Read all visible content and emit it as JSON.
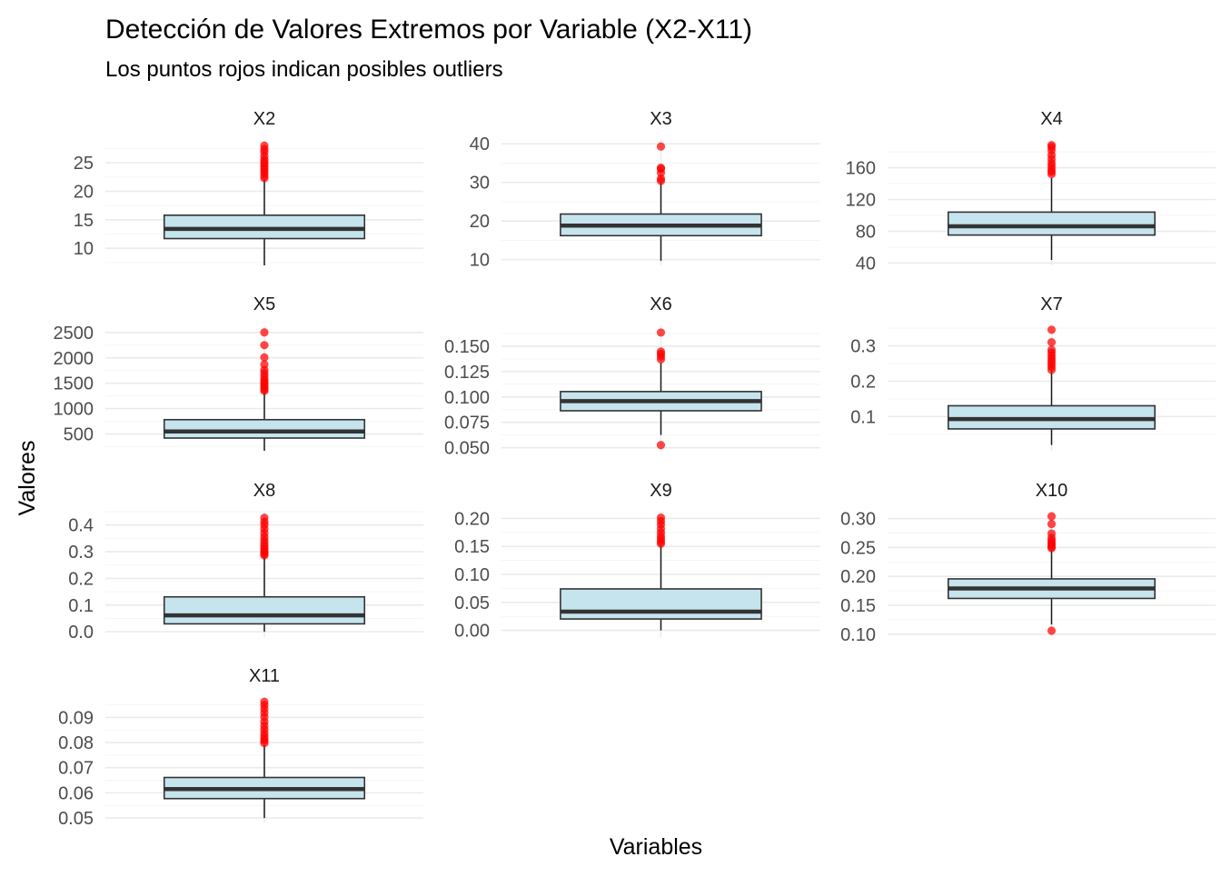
{
  "chart_data": {
    "type": "box",
    "title": "Detección de Valores Extremos por Variable (X2-X11)",
    "subtitle": "Los puntos rojos indican posibles outliers",
    "xlabel": "Variables",
    "ylabel": "Valores",
    "grid": true,
    "legend": "none",
    "colors": {
      "box_fill": "#c6e4ed",
      "box_line": "#333333",
      "whisker": "#1a1a1a",
      "outlier": "#ff0000",
      "grid_major": "#ebebeb",
      "grid_minor": "#f5f5f5"
    },
    "panels": [
      {
        "name": "X2",
        "ylim": [
          7,
          29
        ],
        "ticks": [
          10,
          15,
          20,
          25
        ],
        "tick_labels": [
          "10",
          "15",
          "20",
          "25"
        ],
        "stats": {
          "low": 7.0,
          "q1": 11.7,
          "median": 13.4,
          "q3": 15.8,
          "high": 22.0
        },
        "outliers": [
          22.3,
          22.7,
          23.2,
          23.6,
          24.0,
          24.4,
          24.8,
          25.2,
          25.6,
          26.2,
          26.9,
          27.4,
          28.0
        ]
      },
      {
        "name": "X3",
        "ylim": [
          8.5,
          41
        ],
        "ticks": [
          10,
          20,
          30,
          40
        ],
        "tick_labels": [
          "10",
          "20",
          "30",
          "40"
        ],
        "stats": {
          "low": 9.7,
          "q1": 16.2,
          "median": 18.8,
          "q3": 21.8,
          "high": 29.9
        },
        "outliers": [
          30.4,
          31.0,
          32.5,
          33.5,
          33.8,
          39.3
        ]
      },
      {
        "name": "X4",
        "ylim": [
          37,
          195
        ],
        "ticks": [
          40,
          80,
          120,
          160
        ],
        "tick_labels": [
          "40",
          "80",
          "120",
          "160"
        ],
        "stats": {
          "low": 43.8,
          "q1": 75.2,
          "median": 86.2,
          "q3": 104.1,
          "high": 147.0
        },
        "outliers": [
          152.0,
          155.0,
          158.0,
          162.0,
          166.0,
          171.0,
          176.0,
          182.0,
          186.0,
          188.5
        ]
      },
      {
        "name": "X5",
        "ylim": [
          170,
          2640
        ],
        "ticks": [
          500,
          1000,
          1500,
          2000,
          2500
        ],
        "tick_labels": [
          "500",
          "1000",
          "1500",
          "2000",
          "2500"
        ],
        "stats": {
          "low": 143.5,
          "q1": 420.3,
          "median": 551.1,
          "q3": 782.7,
          "high": 1326.0
        },
        "outliers": [
          1350,
          1380,
          1420,
          1460,
          1500,
          1540,
          1580,
          1640,
          1700,
          1760,
          1870,
          2010,
          2250,
          2501
        ]
      },
      {
        "name": "X6",
        "ylim": [
          0.047,
          0.1705
        ],
        "ticks": [
          0.05,
          0.075,
          0.1,
          0.125,
          0.15
        ],
        "tick_labels": [
          "0.050",
          "0.075",
          "0.100",
          "0.125",
          "0.150"
        ],
        "stats": {
          "low": 0.0626,
          "q1": 0.0864,
          "median": 0.0959,
          "q3": 0.1053,
          "high": 0.1337
        },
        "outliers": [
          0.0526,
          0.1371,
          0.1398,
          0.1425,
          0.1447,
          0.1634
        ]
      },
      {
        "name": "X7",
        "ylim": [
          0.003,
          0.358
        ],
        "ticks": [
          0.1,
          0.2,
          0.3
        ],
        "tick_labels": [
          "0.1",
          "0.2",
          "0.3"
        ],
        "stats": {
          "low": 0.0194,
          "q1": 0.0649,
          "median": 0.0926,
          "q3": 0.1304,
          "high": 0.2283
        },
        "outliers": [
          0.232,
          0.24,
          0.248,
          0.256,
          0.264,
          0.272,
          0.281,
          0.289,
          0.31,
          0.3454
        ]
      },
      {
        "name": "X8",
        "ylim": [
          -0.02,
          0.45
        ],
        "ticks": [
          0.0,
          0.1,
          0.2,
          0.3,
          0.4
        ],
        "tick_labels": [
          "0.0",
          "0.1",
          "0.2",
          "0.3",
          "0.4"
        ],
        "stats": {
          "low": 0.0,
          "q1": 0.0296,
          "median": 0.0615,
          "q3": 0.1307,
          "high": 0.2813
        },
        "outliers": [
          0.286,
          0.292,
          0.298,
          0.305,
          0.313,
          0.322,
          0.332,
          0.343,
          0.355,
          0.37,
          0.385,
          0.4,
          0.412,
          0.427
        ]
      },
      {
        "name": "X9",
        "ylim": [
          -0.012,
          0.212
        ],
        "ticks": [
          0.0,
          0.05,
          0.1,
          0.15,
          0.2
        ],
        "tick_labels": [
          "0.00",
          "0.05",
          "0.10",
          "0.15",
          "0.20"
        ],
        "stats": {
          "low": 0.0,
          "q1": 0.0203,
          "median": 0.0335,
          "q3": 0.074,
          "high": 0.1519
        },
        "outliers": [
          0.1547,
          0.1585,
          0.163,
          0.1681,
          0.1744,
          0.1813,
          0.1888,
          0.1951,
          0.2012
        ]
      },
      {
        "name": "X10",
        "ylim": [
          0.095,
          0.312
        ],
        "ticks": [
          0.1,
          0.15,
          0.2,
          0.25,
          0.3
        ],
        "tick_labels": [
          "0.10",
          "0.15",
          "0.20",
          "0.25",
          "0.30"
        ],
        "stats": {
          "low": 0.1167,
          "q1": 0.1619,
          "median": 0.1792,
          "q3": 0.1957,
          "high": 0.2459
        },
        "outliers": [
          0.106,
          0.2488,
          0.2515,
          0.2545,
          0.2582,
          0.2621,
          0.2665,
          0.2742,
          0.2906,
          0.304
        ]
      },
      {
        "name": "X11",
        "ylim": [
          0.0482,
          0.0981
        ],
        "ticks": [
          0.05,
          0.06,
          0.07,
          0.08,
          0.09
        ],
        "tick_labels": [
          "0.05",
          "0.06",
          "0.07",
          "0.08",
          "0.09"
        ],
        "stats": {
          "low": 0.04996,
          "q1": 0.0577,
          "median": 0.0615,
          "q3": 0.0661,
          "high": 0.0789
        },
        "outliers": [
          0.0798,
          0.0807,
          0.0815,
          0.0826,
          0.0838,
          0.0852,
          0.0867,
          0.0883,
          0.0902,
          0.0918,
          0.0934,
          0.0949,
          0.0962
        ]
      }
    ]
  }
}
